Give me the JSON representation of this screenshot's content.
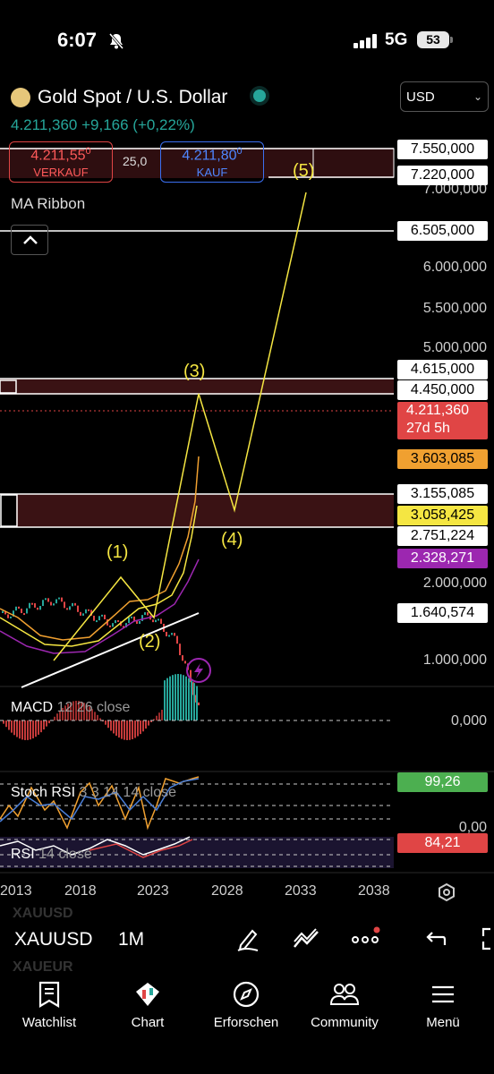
{
  "status_bar": {
    "time": "6:07",
    "network": "5G",
    "battery": "53"
  },
  "header": {
    "title": "Gold Spot / U.S. Dollar",
    "currency": "USD",
    "price_line": "4.211,360 +9,166 (+0,22%)",
    "sell_price": "4.211,55",
    "sell_sup": "0",
    "sell_label": "VERKAUF",
    "spread": "25,0",
    "buy_price": "4.211,80",
    "buy_sup": "0",
    "buy_label": "KAUF",
    "indicator": "MA Ribbon"
  },
  "price_axis": {
    "ticks": [
      "7.000,000",
      "6.000,000",
      "5.500,000",
      "5.000,000",
      "2.000,000",
      "1.000,000"
    ],
    "boxed": [
      "7.550,000",
      "7.220,000",
      "6.505,000",
      "4.615,000",
      "4.450,000",
      "3.155,085",
      "2.751,224",
      "1.640,574"
    ],
    "current_price": "4.211,360",
    "countdown": "27d 5h",
    "ma_labels": [
      "3.603,085",
      "3.058,425",
      "2.328,271"
    ]
  },
  "wave_labels": [
    "(1)",
    "(2)",
    "(3)",
    "(4)",
    "(5)"
  ],
  "macd": {
    "label": "MACD",
    "params": "12 26 close",
    "zero": "0,000"
  },
  "stoch_rsi": {
    "label": "Stoch RSI",
    "params": "3 3 14 14 close",
    "value": "99,26",
    "zero": "0,00"
  },
  "rsi": {
    "label": "RSI",
    "params": "14 close",
    "value": "84,21"
  },
  "time_axis": [
    "2013",
    "2018",
    "2023",
    "2028",
    "2033",
    "2038"
  ],
  "symbol_bar": {
    "ticker": "XAUUSD",
    "interval": "1M",
    "ghost_top": "XAUUSD",
    "ghost_bottom": "XAUEUR"
  },
  "nav": [
    "Watchlist",
    "Chart",
    "Erforschen",
    "Community",
    "Menü"
  ],
  "colors": {
    "up": "#26a69a",
    "down": "#e04545",
    "wave": "#f5e642",
    "zone": "#3a1214",
    "ma_orange": "#f0a030",
    "ma_yellow": "#f5e642",
    "ma_purple": "#9c27b0"
  }
}
